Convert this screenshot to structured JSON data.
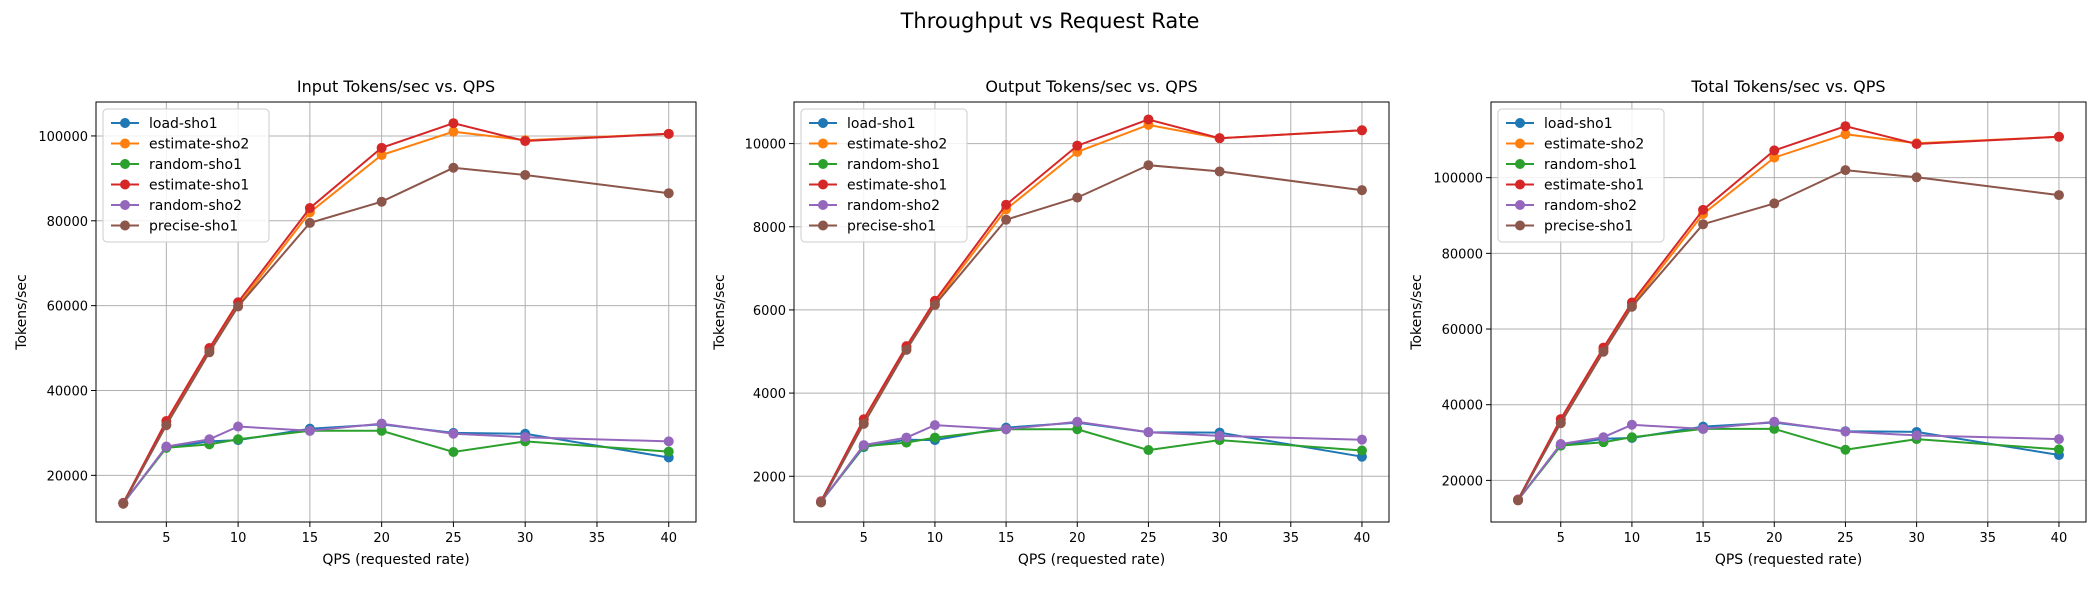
{
  "figure_title": "Throughput vs Request Rate",
  "chart_data": [
    {
      "type": "line",
      "title": "Input Tokens/sec vs. QPS",
      "xlabel": "QPS (requested rate)",
      "ylabel": "Tokens/sec",
      "xlim": [
        0.1,
        41.9
      ],
      "ylim": [
        9000,
        108000
      ],
      "xticks": [
        5,
        10,
        15,
        20,
        25,
        30,
        35,
        40
      ],
      "yticks": [
        20000,
        40000,
        60000,
        80000,
        100000
      ],
      "grid": true,
      "legend": "top-left",
      "x": [
        2,
        5,
        8,
        10,
        15,
        20,
        25,
        30,
        40
      ],
      "series": [
        {
          "name": "load-sho1",
          "color": "#1f77b4",
          "values": [
            13500,
            26500,
            28000,
            28300,
            31000,
            32000,
            30000,
            29800,
            24200
          ]
        },
        {
          "name": "estimate-sho2",
          "color": "#ff7f0e",
          "values": [
            13500,
            32000,
            49500,
            60000,
            82000,
            95500,
            101000,
            99000,
            100500
          ]
        },
        {
          "name": "random-sho1",
          "color": "#2ca02c",
          "values": [
            13400,
            26500,
            27300,
            28500,
            30500,
            30500,
            25500,
            28000,
            25600
          ]
        },
        {
          "name": "estimate-sho1",
          "color": "#d62728",
          "values": [
            13500,
            32800,
            50000,
            60800,
            83000,
            97200,
            103000,
            98800,
            100500
          ]
        },
        {
          "name": "random-sho2",
          "color": "#9467bd",
          "values": [
            13400,
            26800,
            28500,
            31500,
            30500,
            32200,
            29800,
            29000,
            28000
          ]
        },
        {
          "name": "precise-sho1",
          "color": "#8c564b",
          "values": [
            13300,
            31800,
            49000,
            59800,
            79500,
            84500,
            92500,
            90800,
            86500
          ]
        }
      ]
    },
    {
      "type": "line",
      "title": "Output Tokens/sec vs. QPS",
      "xlabel": "QPS (requested rate)",
      "ylabel": "Tokens/sec",
      "xlim": [
        0.1,
        41.9
      ],
      "ylim": [
        900,
        11000
      ],
      "xticks": [
        5,
        10,
        15,
        20,
        25,
        30,
        35,
        40
      ],
      "yticks": [
        2000,
        4000,
        6000,
        8000,
        10000
      ],
      "grid": true,
      "legend": "top-left",
      "x": [
        2,
        5,
        8,
        10,
        15,
        20,
        25,
        30,
        40
      ],
      "series": [
        {
          "name": "load-sho1",
          "color": "#1f77b4",
          "values": [
            1390,
            2700,
            2880,
            2870,
            3170,
            3290,
            3060,
            3050,
            2470
          ]
        },
        {
          "name": "estimate-sho2",
          "color": "#ff7f0e",
          "values": [
            1390,
            3280,
            5100,
            6150,
            8420,
            9800,
            10450,
            10130,
            10320
          ]
        },
        {
          "name": "random-sho1",
          "color": "#2ca02c",
          "values": [
            1380,
            2720,
            2810,
            2930,
            3130,
            3130,
            2630,
            2870,
            2620
          ]
        },
        {
          "name": "estimate-sho1",
          "color": "#d62728",
          "values": [
            1400,
            3370,
            5130,
            6220,
            8530,
            9950,
            10580,
            10130,
            10320
          ]
        },
        {
          "name": "random-sho2",
          "color": "#9467bd",
          "values": [
            1380,
            2750,
            2930,
            3230,
            3130,
            3310,
            3060,
            2970,
            2880
          ]
        },
        {
          "name": "precise-sho1",
          "color": "#8c564b",
          "values": [
            1370,
            3260,
            5040,
            6120,
            8170,
            8700,
            9480,
            9330,
            8880
          ]
        }
      ]
    },
    {
      "type": "line",
      "title": "Total Tokens/sec vs. QPS",
      "xlabel": "QPS (requested rate)",
      "ylabel": "Tokens/sec",
      "xlim": [
        0.1,
        41.9
      ],
      "ylim": [
        9000,
        120000
      ],
      "xticks": [
        5,
        10,
        15,
        20,
        25,
        30,
        35,
        40
      ],
      "yticks": [
        20000,
        40000,
        60000,
        80000,
        100000
      ],
      "grid": true,
      "legend": "top-left",
      "x": [
        2,
        5,
        8,
        10,
        15,
        20,
        25,
        30,
        40
      ],
      "series": [
        {
          "name": "load-sho1",
          "color": "#1f77b4",
          "values": [
            14900,
            29200,
            31000,
            31200,
            34200,
            35300,
            33000,
            32800,
            26700
          ]
        },
        {
          "name": "estimate-sho2",
          "color": "#ff7f0e",
          "values": [
            14900,
            35300,
            54600,
            66200,
            90400,
            105300,
            111500,
            109100,
            110800
          ]
        },
        {
          "name": "random-sho1",
          "color": "#2ca02c",
          "values": [
            14800,
            29200,
            30100,
            31400,
            33600,
            33600,
            28100,
            30900,
            28200
          ]
        },
        {
          "name": "estimate-sho1",
          "color": "#d62728",
          "values": [
            14900,
            36200,
            55100,
            67000,
            91500,
            107200,
            113600,
            108900,
            110800
          ]
        },
        {
          "name": "random-sho2",
          "color": "#9467bd",
          "values": [
            14800,
            29600,
            31400,
            34700,
            33600,
            35500,
            32900,
            31900,
            30900
          ]
        },
        {
          "name": "precise-sho1",
          "color": "#8c564b",
          "values": [
            14700,
            35100,
            54000,
            65900,
            87700,
            93200,
            102000,
            100100,
            95400
          ]
        }
      ]
    }
  ]
}
